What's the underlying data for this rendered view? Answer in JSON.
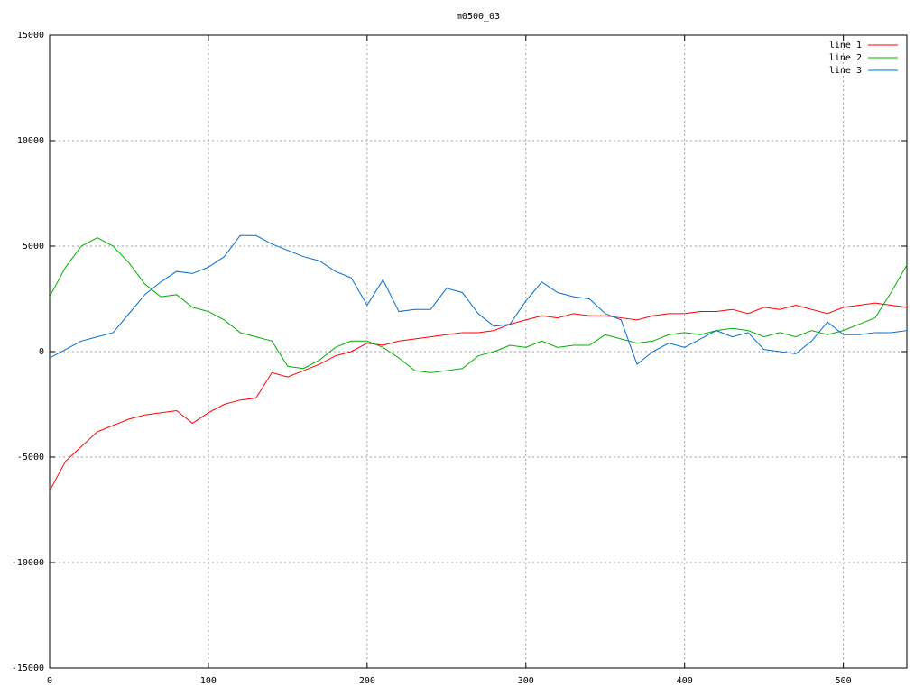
{
  "chart_data": {
    "type": "line",
    "title": "m0500_03",
    "x": [
      0,
      10,
      20,
      30,
      40,
      50,
      60,
      70,
      80,
      90,
      100,
      110,
      120,
      130,
      140,
      150,
      160,
      170,
      180,
      190,
      200,
      210,
      220,
      230,
      240,
      250,
      260,
      270,
      280,
      290,
      300,
      310,
      320,
      330,
      340,
      350,
      360,
      370,
      380,
      390,
      400,
      410,
      420,
      430,
      440,
      450,
      460,
      470,
      480,
      490,
      500,
      510,
      520,
      530,
      540
    ],
    "series": [
      {
        "name": "line 1",
        "color": "#ff0000",
        "values": [
          -6600,
          -5200,
          -4500,
          -3800,
          -3500,
          -3200,
          -3000,
          -2900,
          -2800,
          -3400,
          -2900,
          -2500,
          -2300,
          -2200,
          -1000,
          -1200,
          -900,
          -600,
          -200,
          0,
          400,
          300,
          500,
          600,
          700,
          800,
          900,
          900,
          1000,
          1300,
          1500,
          1700,
          1600,
          1800,
          1700,
          1700,
          1600,
          1500,
          1700,
          1800,
          1800,
          1900,
          1900,
          2000,
          1800,
          2100,
          2000,
          2200,
          2000,
          1800,
          2100,
          2200,
          2300,
          2200,
          2100
        ]
      },
      {
        "name": "line 2",
        "color": "#00b000",
        "values": [
          2600,
          4000,
          5000,
          5400,
          5000,
          4200,
          3200,
          2600,
          2700,
          2100,
          1900,
          1500,
          900,
          700,
          500,
          -700,
          -800,
          -400,
          200,
          500,
          500,
          200,
          -300,
          -900,
          -1000,
          -900,
          -800,
          -200,
          0,
          300,
          200,
          500,
          200,
          300,
          300,
          800,
          600,
          400,
          500,
          800,
          900,
          800,
          1000,
          1100,
          1000,
          700,
          900,
          700,
          1000,
          800,
          1000,
          1300,
          1600,
          2800,
          4100
        ]
      },
      {
        "name": "line 3",
        "color": "#0070d0",
        "values": [
          -300,
          100,
          500,
          700,
          900,
          1800,
          2700,
          3300,
          3800,
          3700,
          4000,
          4500,
          5500,
          5500,
          5100,
          4800,
          4500,
          4300,
          3800,
          3500,
          2200,
          3400,
          1900,
          2000,
          2000,
          3000,
          2800,
          1800,
          1200,
          1300,
          2400,
          3300,
          2800,
          2600,
          2500,
          1800,
          1500,
          -600,
          0,
          400,
          200,
          600,
          1000,
          700,
          900,
          100,
          0,
          -100,
          500,
          1400,
          800,
          800,
          900,
          900,
          1000
        ]
      }
    ],
    "xlim": [
      0,
      540
    ],
    "ylim": [
      -15000,
      15000
    ],
    "xticks": [
      0,
      100,
      200,
      300,
      400,
      500
    ],
    "yticks": [
      -15000,
      -10000,
      -5000,
      0,
      5000,
      10000,
      15000
    ],
    "grid": true,
    "legend": "upper right"
  }
}
